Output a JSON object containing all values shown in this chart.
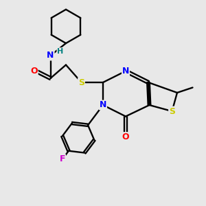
{
  "background_color": "#e8e8e8",
  "bond_color": "#000000",
  "atom_colors": {
    "N": "#0000ff",
    "S": "#cccc00",
    "O": "#ff0000",
    "F": "#cc00cc",
    "H": "#008080",
    "C": "#000000"
  },
  "title": "",
  "figsize": [
    3.0,
    3.0
  ],
  "dpi": 100
}
